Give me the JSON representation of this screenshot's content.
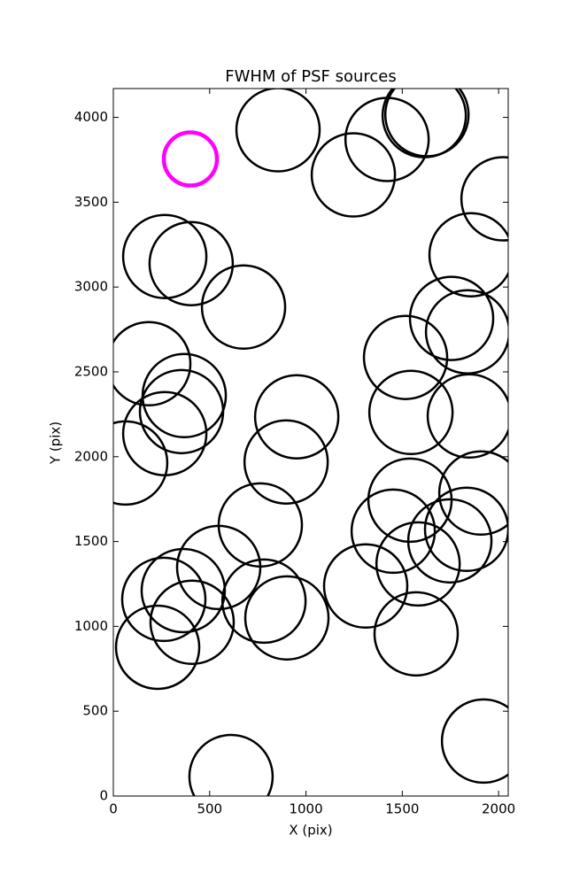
{
  "chart_data": {
    "type": "scatter",
    "title": "FWHM of PSF sources",
    "x_label": "X (pix)",
    "y_label": "Y (pix)",
    "xlim": [
      0,
      2050
    ],
    "ylim": [
      0,
      4170
    ],
    "xticks": [
      0,
      500,
      1000,
      1500,
      2000
    ],
    "yticks": [
      0,
      500,
      1000,
      1500,
      2000,
      2500,
      3000,
      3500,
      4000
    ],
    "series": [
      {
        "color": "#000000",
        "x": [
          855,
          1421,
          1614,
          1628,
          1246,
          2023,
          267,
          404,
          676,
          1857,
          1756,
          1839,
          184,
          368,
          1517,
          354,
          952,
          1848,
          1545,
          267,
          64,
          897,
          1908,
          1540,
          763,
          1453,
          1834,
          1747,
          547,
          1582,
          363,
          262,
          782,
          1310,
          409,
          901,
          230,
          1572,
          1922,
          611
        ],
        "y": [
          3927,
          3870,
          4010,
          4016,
          3661,
          3520,
          3180,
          3138,
          2882,
          3190,
          2815,
          2736,
          2548,
          2360,
          2585,
          2266,
          2235,
          2240,
          2261,
          2136,
          1963,
          1969,
          1786,
          1744,
          1598,
          1561,
          1572,
          1504,
          1347,
          1368,
          1211,
          1159,
          1149,
          1238,
          1024,
          1050,
          877,
          956,
          324,
          115
        ]
      },
      {
        "color": "#ff00ff",
        "x": [
          400
        ],
        "y": [
          3755
        ]
      }
    ]
  }
}
